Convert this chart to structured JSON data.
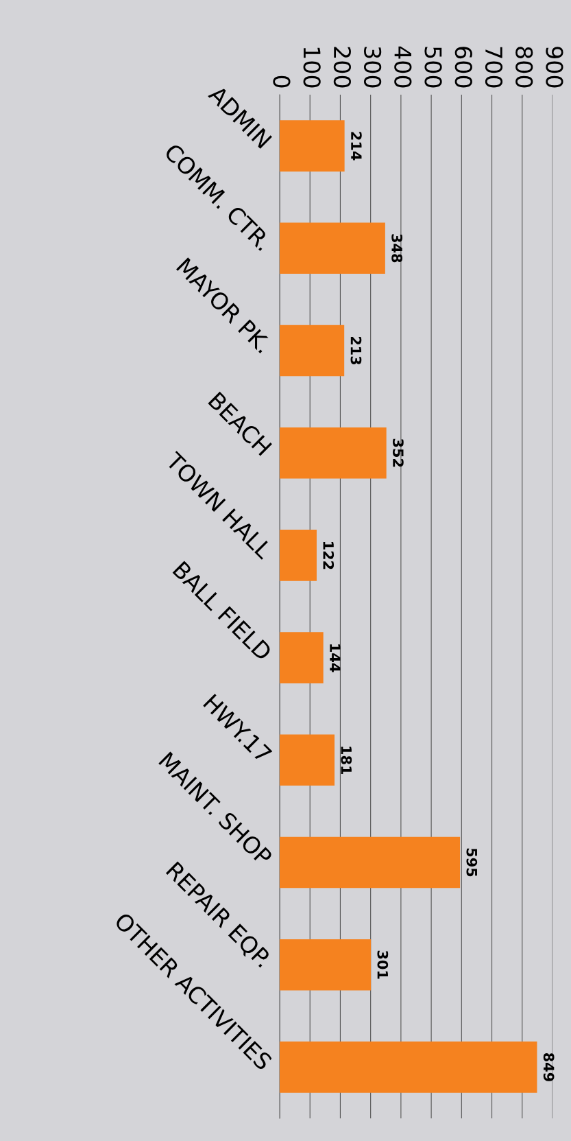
{
  "chart_data": {
    "type": "bar",
    "orientation": "horizontal",
    "categories": [
      "ADMIN",
      "COMM. CTR.",
      "MAYOR PK.",
      "BEACH",
      "TOWN HALL",
      "BALL FIELD",
      "HWY.17",
      "MAINT. SHOP",
      "REPAIR EQP.",
      "OTHER ACTIVITIES"
    ],
    "values": [
      214,
      348,
      213,
      352,
      122,
      144,
      181,
      595,
      301,
      849
    ],
    "color": "#f5821f",
    "xlim": [
      0,
      900
    ],
    "xticks": [
      0,
      100,
      200,
      300,
      400,
      500,
      600,
      700,
      800,
      900
    ],
    "grid": "x",
    "data_labels": true
  }
}
